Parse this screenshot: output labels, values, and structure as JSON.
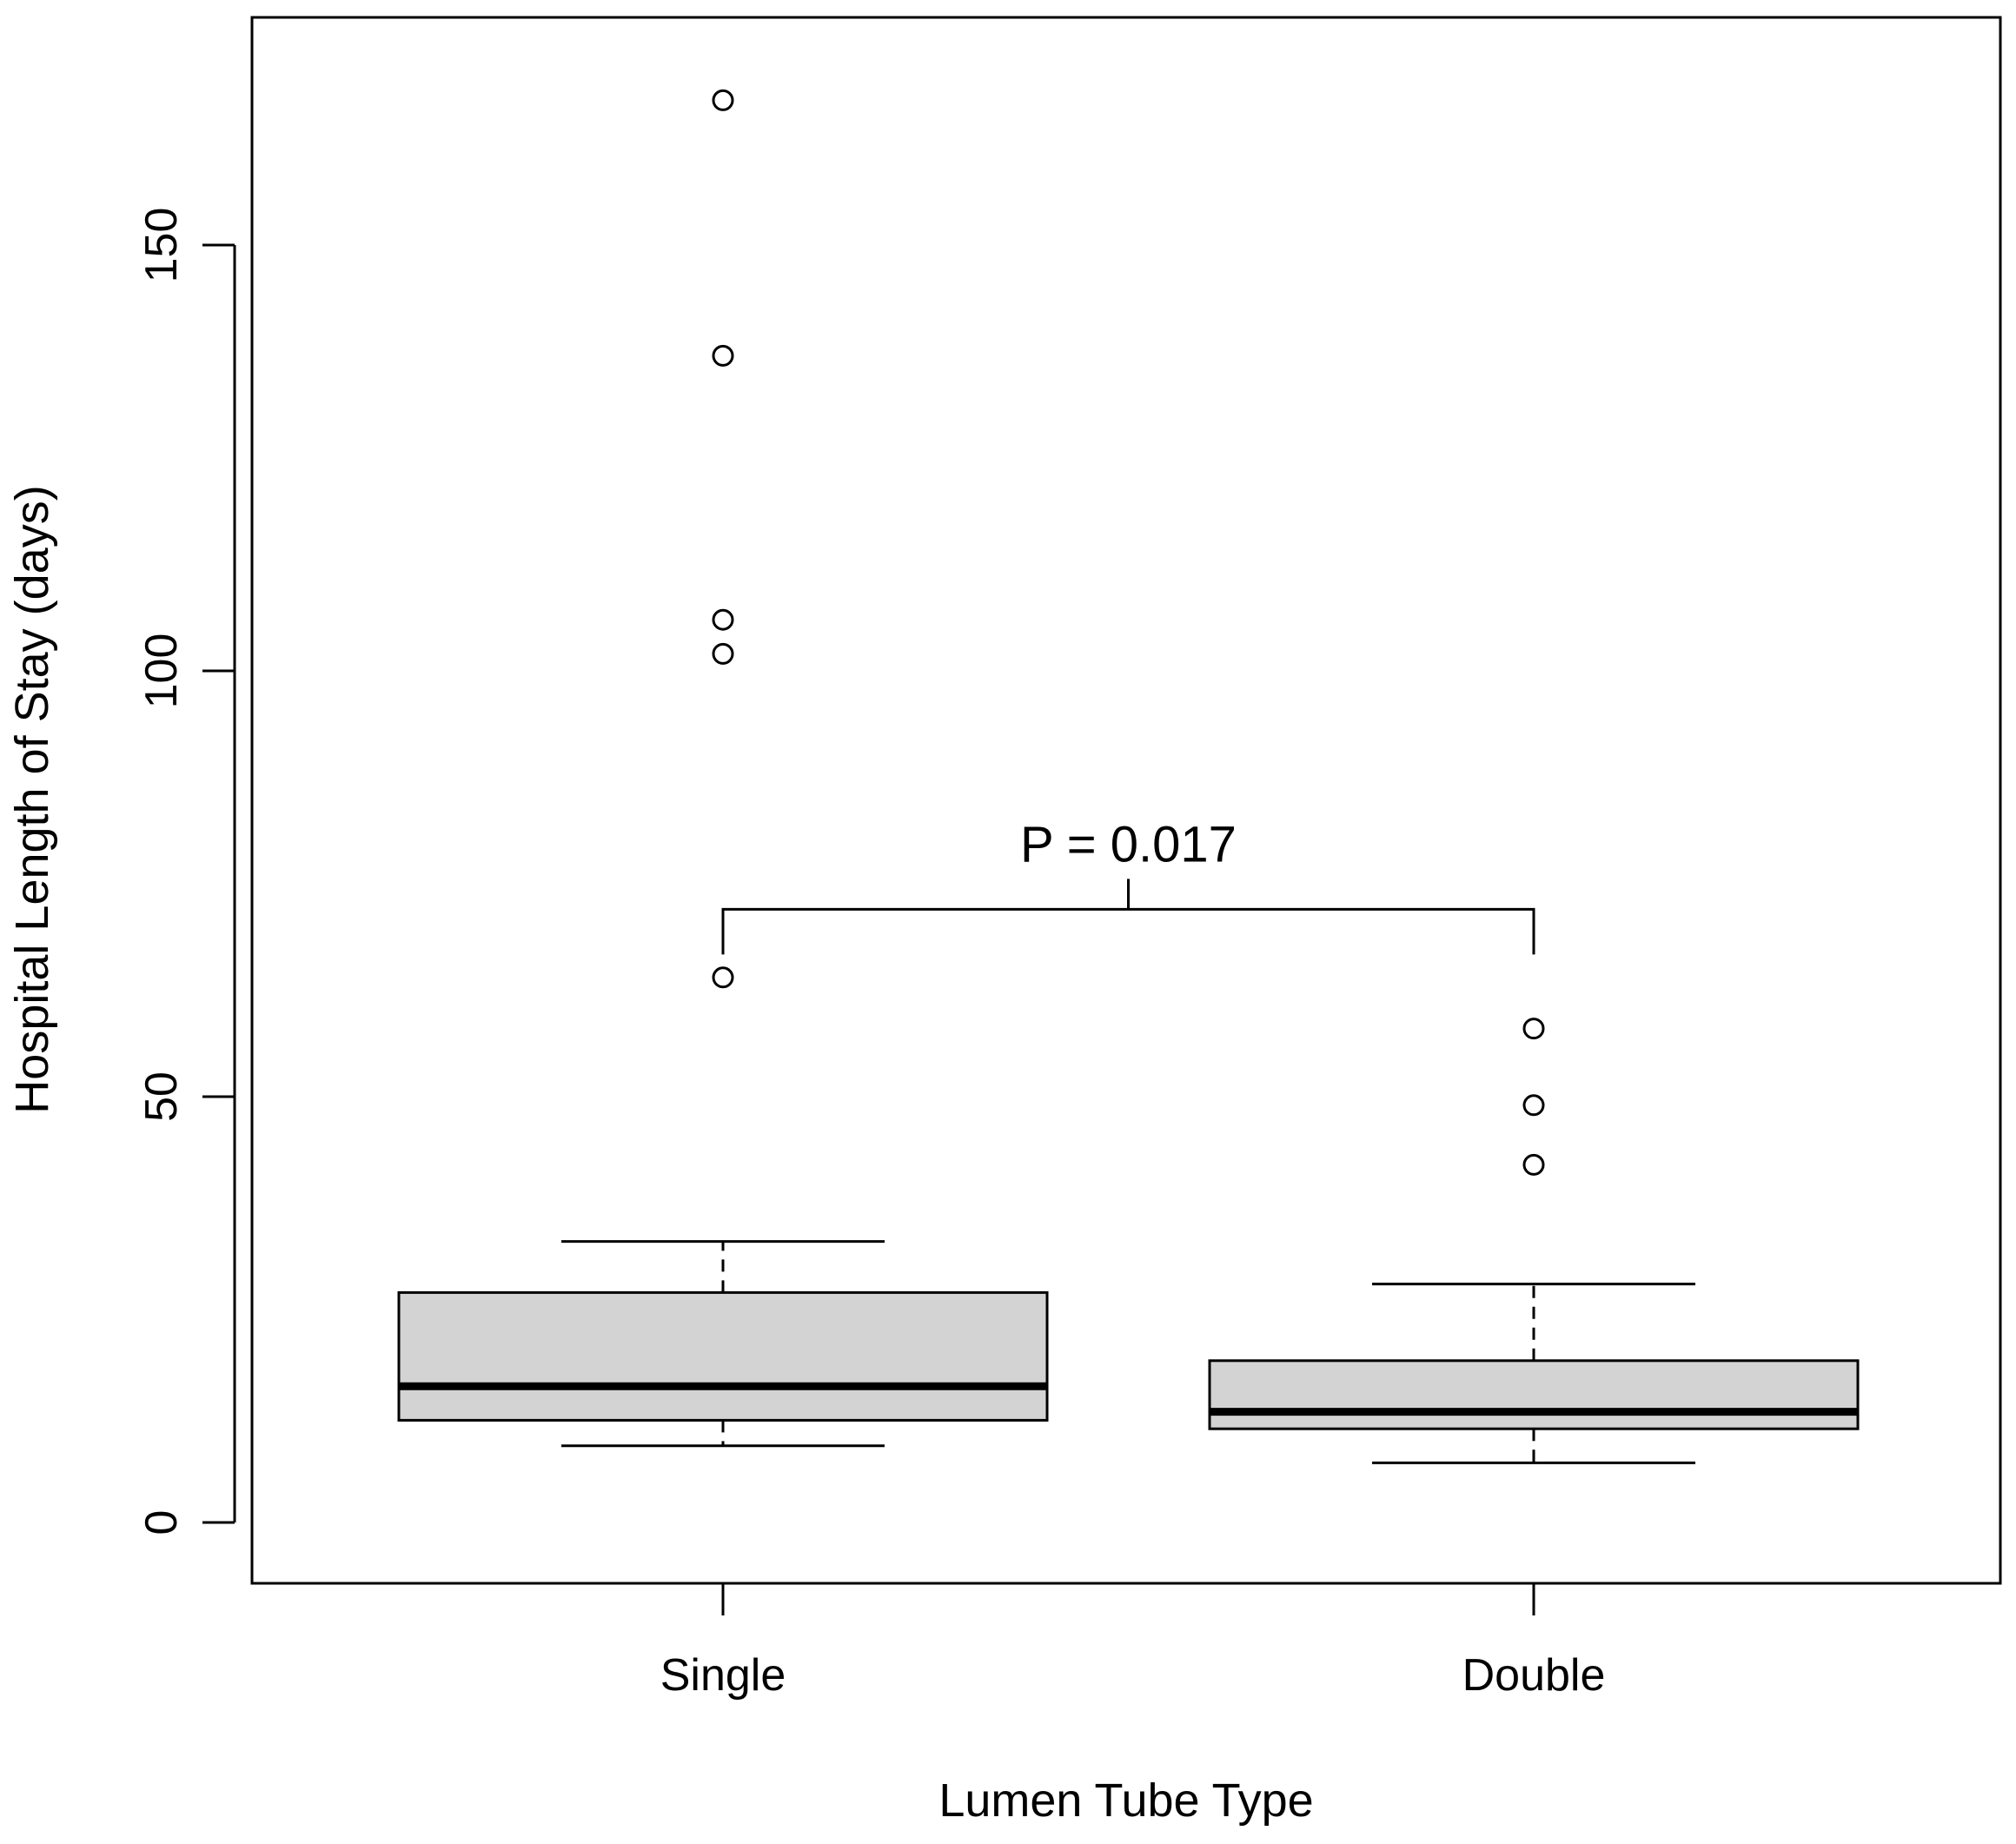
{
  "chart_data": {
    "type": "box",
    "xlabel": "Lumen Tube Type",
    "ylabel": "Hospital Length of Stay (days)",
    "categories": [
      "Single",
      "Double"
    ],
    "ylim": [
      -7,
      177
    ],
    "yticks": [
      0,
      50,
      100,
      150
    ],
    "ytick_labels": [
      "0",
      "50",
      "100",
      "150"
    ],
    "grid": false,
    "legend": "none",
    "box_fill": "#d3d3d3",
    "boxes": [
      {
        "name": "Single",
        "whisker_low": 9,
        "q1": 12,
        "median": 16,
        "q3": 27,
        "whisker_high": 33,
        "outliers": [
          64,
          102,
          106,
          137,
          167
        ]
      },
      {
        "name": "Double",
        "whisker_low": 7,
        "q1": 11,
        "median": 13,
        "q3": 19,
        "whisker_high": 28,
        "outliers": [
          42,
          49,
          58
        ]
      }
    ],
    "annotation": {
      "text": "P = 0.017",
      "bracket_y": 72,
      "from": "Single",
      "to": "Double"
    }
  }
}
